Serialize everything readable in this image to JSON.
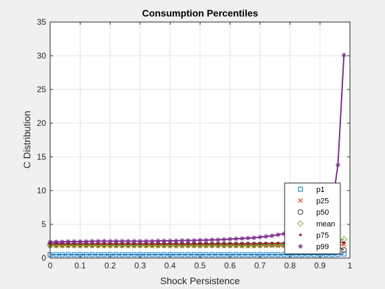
{
  "chart_data": {
    "type": "line",
    "title": "Consumption Percentiles",
    "xlabel": "Shock Persistence",
    "ylabel": "C Distribution",
    "xlim": [
      0,
      1
    ],
    "ylim": [
      0,
      35
    ],
    "xticks": [
      "0",
      "0.1",
      "0.2",
      "0.3",
      "0.4",
      "0.5",
      "0.6",
      "0.7",
      "0.8",
      "0.9",
      "1"
    ],
    "yticks": [
      "0",
      "5",
      "10",
      "15",
      "20",
      "25",
      "30",
      "35"
    ],
    "grid": true,
    "legend_position": "bottom-right",
    "x": [
      0,
      0.02,
      0.04,
      0.06,
      0.08,
      0.1,
      0.12,
      0.14,
      0.16,
      0.18,
      0.2,
      0.22,
      0.24,
      0.26,
      0.28,
      0.3,
      0.32,
      0.34,
      0.36,
      0.38,
      0.4,
      0.42,
      0.44,
      0.46,
      0.48,
      0.5,
      0.52,
      0.54,
      0.56,
      0.58,
      0.6,
      0.62,
      0.64,
      0.66,
      0.68,
      0.7,
      0.72,
      0.74,
      0.76,
      0.78,
      0.8,
      0.82,
      0.84,
      0.86,
      0.88,
      0.9,
      0.92,
      0.94,
      0.96,
      0.98
    ],
    "series": [
      {
        "name": "p1",
        "color": "#0072bd",
        "marker": "square",
        "values": [
          0.5,
          0.5,
          0.5,
          0.5,
          0.5,
          0.5,
          0.5,
          0.5,
          0.5,
          0.5,
          0.5,
          0.5,
          0.5,
          0.5,
          0.5,
          0.5,
          0.5,
          0.5,
          0.5,
          0.5,
          0.5,
          0.5,
          0.5,
          0.5,
          0.5,
          0.5,
          0.5,
          0.5,
          0.5,
          0.5,
          0.5,
          0.5,
          0.5,
          0.5,
          0.5,
          0.5,
          0.5,
          0.5,
          0.5,
          0.5,
          0.5,
          0.5,
          0.5,
          0.5,
          0.5,
          0.5,
          0.5,
          0.5,
          0.55,
          0.6
        ]
      },
      {
        "name": "p25",
        "color": "#d95319",
        "marker": "x",
        "values": [
          1.8,
          1.8,
          1.8,
          1.8,
          1.8,
          1.8,
          1.8,
          1.8,
          1.8,
          1.8,
          1.8,
          1.8,
          1.8,
          1.8,
          1.8,
          1.8,
          1.8,
          1.8,
          1.8,
          1.8,
          1.8,
          1.8,
          1.8,
          1.8,
          1.8,
          1.8,
          1.8,
          1.8,
          1.8,
          1.8,
          1.8,
          1.8,
          1.8,
          1.8,
          1.8,
          1.8,
          1.8,
          1.8,
          1.8,
          1.8,
          1.8,
          1.8,
          1.8,
          1.8,
          1.8,
          1.8,
          1.8,
          1.8,
          1.9,
          2.0
        ]
      },
      {
        "name": "p50",
        "color": "#333333",
        "marker": "circle",
        "values": [
          2.0,
          2.0,
          2.0,
          2.0,
          2.0,
          2.0,
          2.0,
          2.0,
          2.0,
          2.0,
          2.0,
          2.0,
          2.0,
          2.0,
          2.0,
          2.0,
          2.0,
          2.0,
          2.0,
          2.0,
          2.0,
          2.0,
          2.0,
          2.0,
          2.0,
          2.0,
          2.0,
          2.0,
          2.0,
          2.0,
          2.0,
          2.0,
          2.0,
          2.0,
          2.0,
          2.0,
          2.0,
          2.0,
          2.0,
          2.0,
          2.0,
          2.0,
          2.0,
          2.0,
          2.0,
          2.0,
          2.0,
          2.0,
          1.7,
          1.2
        ]
      },
      {
        "name": "mean",
        "color": "#77ac30",
        "marker": "diamond",
        "values": [
          1.9,
          1.9,
          1.9,
          1.9,
          1.9,
          1.9,
          1.9,
          1.9,
          1.9,
          1.9,
          1.9,
          1.9,
          1.9,
          1.9,
          1.9,
          1.9,
          1.9,
          1.9,
          1.9,
          1.9,
          1.9,
          1.9,
          1.9,
          1.9,
          1.9,
          1.9,
          1.9,
          1.9,
          1.9,
          1.9,
          1.9,
          1.9,
          1.9,
          1.9,
          1.9,
          1.9,
          1.95,
          2.0,
          2.0,
          2.0,
          2.05,
          2.1,
          2.1,
          2.15,
          2.2,
          2.25,
          2.3,
          2.4,
          2.5,
          2.8
        ]
      },
      {
        "name": "p75",
        "color": "#a2142f",
        "marker": "dot",
        "values": [
          2.1,
          2.1,
          2.1,
          2.1,
          2.1,
          2.1,
          2.1,
          2.1,
          2.1,
          2.1,
          2.1,
          2.1,
          2.1,
          2.1,
          2.1,
          2.1,
          2.1,
          2.1,
          2.1,
          2.1,
          2.1,
          2.1,
          2.1,
          2.1,
          2.1,
          2.1,
          2.1,
          2.1,
          2.1,
          2.1,
          2.1,
          2.1,
          2.1,
          2.1,
          2.1,
          2.15,
          2.15,
          2.15,
          2.2,
          2.2,
          2.2,
          2.2,
          2.25,
          2.25,
          2.3,
          2.3,
          2.35,
          2.35,
          2.4,
          2.3
        ]
      },
      {
        "name": "p99",
        "color": "#7e2f8e",
        "marker": "star",
        "values": [
          2.4,
          2.4,
          2.4,
          2.45,
          2.45,
          2.45,
          2.45,
          2.5,
          2.5,
          2.5,
          2.5,
          2.5,
          2.5,
          2.5,
          2.5,
          2.5,
          2.5,
          2.5,
          2.55,
          2.55,
          2.55,
          2.55,
          2.6,
          2.6,
          2.6,
          2.65,
          2.65,
          2.7,
          2.7,
          2.75,
          2.8,
          2.85,
          2.9,
          2.95,
          3.0,
          3.1,
          3.2,
          3.3,
          3.45,
          3.6,
          3.75,
          4.0,
          4.3,
          4.7,
          5.2,
          5.8,
          6.6,
          7.6,
          13.8,
          30.1
        ]
      }
    ]
  }
}
